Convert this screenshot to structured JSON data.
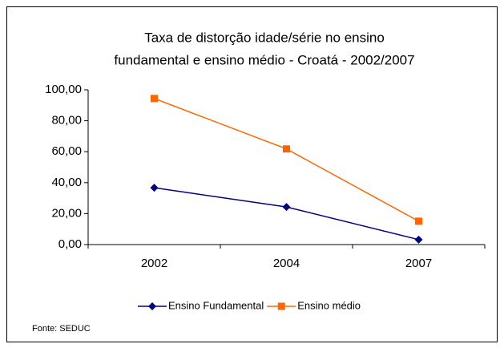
{
  "chart_data": {
    "type": "line",
    "title": [
      "Taxa de distorção idade/série no ensino",
      "fundamental e ensino médio - Croatá -  2002/2007"
    ],
    "categories": [
      "2002",
      "2004",
      "2007"
    ],
    "series": [
      {
        "name": "Ensino Fundamental",
        "color": "#000080",
        "marker": "diamond",
        "values": [
          36.7,
          24.3,
          3.2
        ]
      },
      {
        "name": "Ensino médio",
        "color": "#ff6600",
        "marker": "square",
        "values": [
          94.4,
          61.8,
          15.1
        ]
      }
    ],
    "ylim": [
      0,
      100
    ],
    "yticks": [
      {
        "value": 0,
        "label": "0,00"
      },
      {
        "value": 20,
        "label": "20,00"
      },
      {
        "value": 40,
        "label": "40,00"
      },
      {
        "value": 60,
        "label": "60,00"
      },
      {
        "value": 80,
        "label": "80,00"
      },
      {
        "value": 100,
        "label": "100,00"
      }
    ],
    "legend": "bottom",
    "source": "Fonte: SEDUC"
  }
}
